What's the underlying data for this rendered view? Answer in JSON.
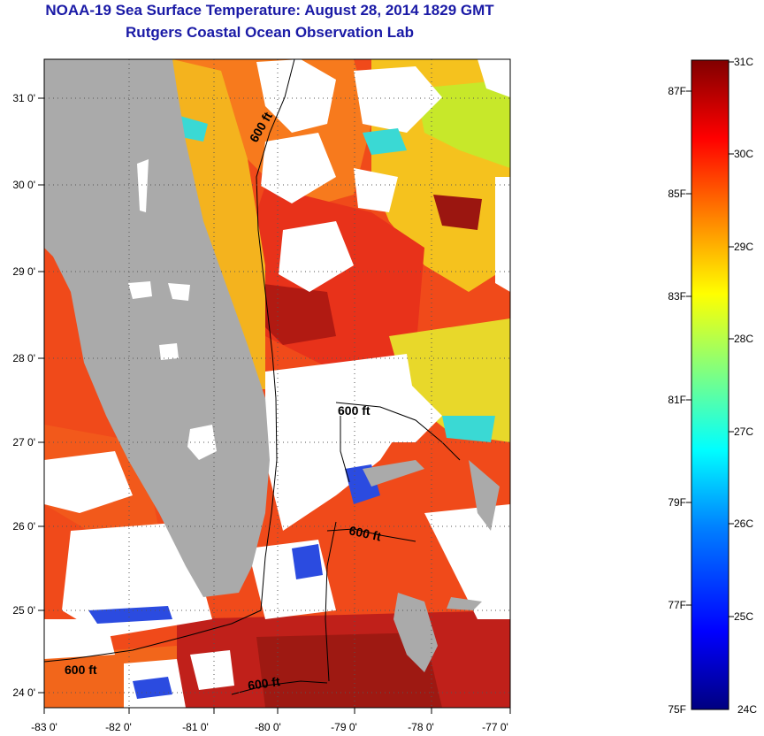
{
  "header": {
    "title": "NOAA-19 Sea Surface Temperature:  August 28, 2014 1829 GMT",
    "subtitle": "Rutgers Coastal Ocean Observation Lab"
  },
  "map": {
    "lon_ticks": [
      "-83 0'",
      "-82 0'",
      "-81 0'",
      "-80 0'",
      "-79 0'",
      "-78 0'",
      "-77 0'"
    ],
    "lat_ticks": [
      "31 0'",
      "30 0'",
      "29 0'",
      "28 0'",
      "27 0'",
      "26 0'",
      "25 0'",
      "24 0'"
    ],
    "isobath_labels": [
      "600 ft",
      "600 ft",
      "600 ft",
      "600 ft",
      "600 ft"
    ],
    "land_color": "#aaaaaa",
    "cloud_color": "#ffffff"
  },
  "colorbar": {
    "celsius_labels": [
      "31C",
      "30C",
      "29C",
      "28C",
      "27C",
      "26C",
      "25C",
      "24C"
    ],
    "fahrenheit_labels": [
      "87F",
      "85F",
      "83F",
      "81F",
      "79F",
      "77F",
      "75F"
    ],
    "colors": [
      "#000080",
      "#0000ff",
      "#0080ff",
      "#00ffff",
      "#80ff80",
      "#ffff00",
      "#ff8000",
      "#ff0000",
      "#800000"
    ]
  }
}
